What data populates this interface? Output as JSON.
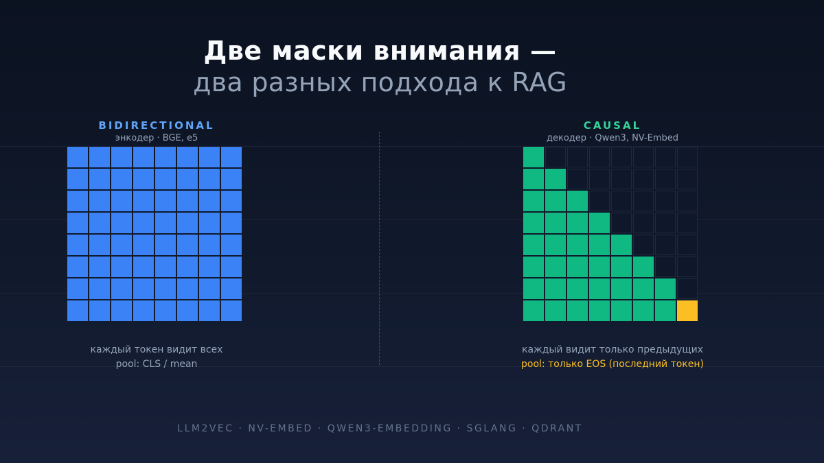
{
  "title": {
    "main": "Две маски внимания —",
    "sub": "два разных подхода к RAG"
  },
  "panels": {
    "bidirectional": {
      "label": "BIDIRECTIONAL",
      "subtitle": "энкодер · BGE, e5",
      "caption_line1": "каждый токен видит всех",
      "caption_line2": "pool: CLS / mean",
      "color": "#3b82f6",
      "label_color": "#60a5fa",
      "mask": "full",
      "size": 8
    },
    "causal": {
      "label": "CAUSAL",
      "subtitle": "декодер · Qwen3, NV-Embed",
      "caption_line1": "каждый видит только предыдущих",
      "caption_line2": "pool: только EOS (последний токен)",
      "color": "#10b981",
      "label_color": "#34d399",
      "highlight_color": "#fbbf24",
      "mask": "lower-triangular",
      "highlight_cell": "last",
      "size": 8
    }
  },
  "footer": "LLM2VEC · NV-EMBED · QWEN3-EMBEDDING · SGLANG · QDRANT"
}
